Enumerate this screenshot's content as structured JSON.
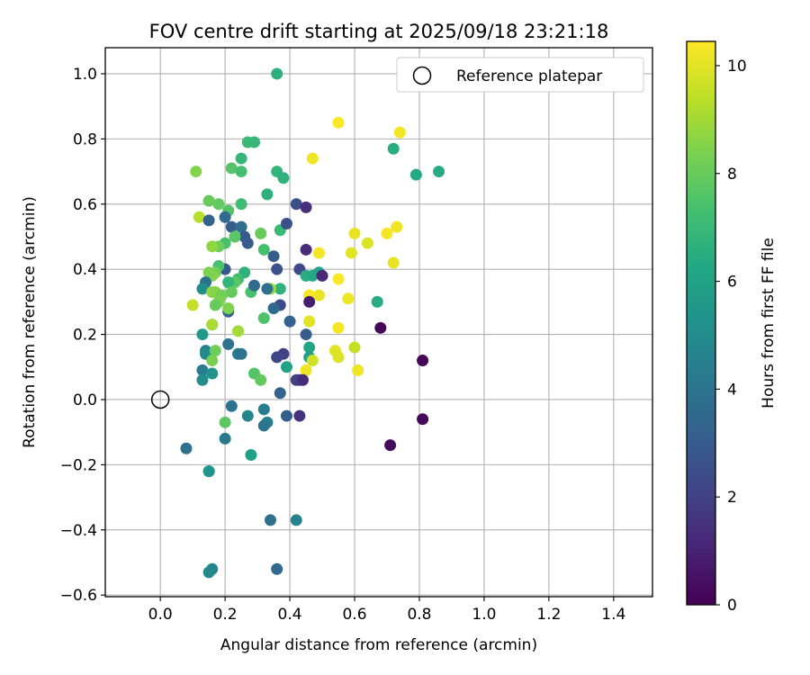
{
  "chart_data": {
    "type": "scatter",
    "title": "FOV centre drift starting at 2025/09/18 23:21:18",
    "xlabel": "Angular distance from reference (arcmin)",
    "ylabel": "Rotation from reference (arcmin)",
    "xlim": [
      -0.17,
      1.52
    ],
    "ylim": [
      -0.605,
      1.08
    ],
    "xticks": [
      "0.0",
      "0.2",
      "0.4",
      "0.6",
      "0.8",
      "1.0",
      "1.2",
      "1.4"
    ],
    "yticks": [
      "1.0",
      "0.8",
      "0.6",
      "0.4",
      "0.2",
      "0.0",
      "−0.2",
      "−0.4",
      "−0.6"
    ],
    "grid": true,
    "legend": {
      "location": "top-right",
      "entries": [
        "Reference platepar"
      ]
    },
    "reference_point": {
      "x": 0.0,
      "y": 0.0
    },
    "colorbar": {
      "label": "Hours from first FF file",
      "range": [
        0,
        10.45
      ],
      "ticks": [
        "0",
        "2",
        "4",
        "6",
        "8",
        "10"
      ],
      "colormap": "viridis"
    },
    "points": [
      {
        "x": 0.36,
        "y": 1.0,
        "h": 6.6
      },
      {
        "x": 0.86,
        "y": 0.7,
        "h": 6.4
      },
      {
        "x": 0.79,
        "y": 0.69,
        "h": 6.3
      },
      {
        "x": 0.72,
        "y": 0.77,
        "h": 6.5
      },
      {
        "x": 0.74,
        "y": 0.82,
        "h": 10.3
      },
      {
        "x": 0.55,
        "y": 0.85,
        "h": 10.4
      },
      {
        "x": 0.47,
        "y": 0.74,
        "h": 10.2
      },
      {
        "x": 0.27,
        "y": 0.79,
        "h": 7.0
      },
      {
        "x": 0.29,
        "y": 0.79,
        "h": 6.9
      },
      {
        "x": 0.36,
        "y": 0.7,
        "h": 6.8
      },
      {
        "x": 0.38,
        "y": 0.68,
        "h": 6.7
      },
      {
        "x": 0.22,
        "y": 0.71,
        "h": 7.6
      },
      {
        "x": 0.25,
        "y": 0.74,
        "h": 6.9
      },
      {
        "x": 0.25,
        "y": 0.7,
        "h": 7.3
      },
      {
        "x": 0.11,
        "y": 0.7,
        "h": 8.5
      },
      {
        "x": 0.15,
        "y": 0.61,
        "h": 8.0
      },
      {
        "x": 0.18,
        "y": 0.6,
        "h": 7.9
      },
      {
        "x": 0.12,
        "y": 0.56,
        "h": 9.3
      },
      {
        "x": 0.21,
        "y": 0.58,
        "h": 7.6
      },
      {
        "x": 0.25,
        "y": 0.6,
        "h": 7.2
      },
      {
        "x": 0.33,
        "y": 0.63,
        "h": 6.6
      },
      {
        "x": 0.15,
        "y": 0.55,
        "h": 3.3
      },
      {
        "x": 0.2,
        "y": 0.56,
        "h": 3.6
      },
      {
        "x": 0.22,
        "y": 0.53,
        "h": 3.0
      },
      {
        "x": 0.25,
        "y": 0.53,
        "h": 3.8
      },
      {
        "x": 0.26,
        "y": 0.5,
        "h": 2.9
      },
      {
        "x": 0.27,
        "y": 0.48,
        "h": 3.1
      },
      {
        "x": 0.23,
        "y": 0.5,
        "h": 7.7
      },
      {
        "x": 0.2,
        "y": 0.48,
        "h": 7.4
      },
      {
        "x": 0.18,
        "y": 0.47,
        "h": 8.1
      },
      {
        "x": 0.16,
        "y": 0.47,
        "h": 8.7
      },
      {
        "x": 0.31,
        "y": 0.51,
        "h": 8.0
      },
      {
        "x": 0.32,
        "y": 0.46,
        "h": 7.3
      },
      {
        "x": 0.35,
        "y": 0.44,
        "h": 3.0
      },
      {
        "x": 0.37,
        "y": 0.52,
        "h": 7.0
      },
      {
        "x": 0.39,
        "y": 0.54,
        "h": 2.6
      },
      {
        "x": 0.42,
        "y": 0.6,
        "h": 2.5
      },
      {
        "x": 0.45,
        "y": 0.59,
        "h": 1.4
      },
      {
        "x": 0.45,
        "y": 0.46,
        "h": 1.3
      },
      {
        "x": 0.43,
        "y": 0.4,
        "h": 2.3
      },
      {
        "x": 0.45,
        "y": 0.38,
        "h": 6.5
      },
      {
        "x": 0.47,
        "y": 0.38,
        "h": 6.3
      },
      {
        "x": 0.49,
        "y": 0.39,
        "h": 6.0
      },
      {
        "x": 0.5,
        "y": 0.38,
        "h": 1.2
      },
      {
        "x": 0.49,
        "y": 0.45,
        "h": 10.3
      },
      {
        "x": 0.6,
        "y": 0.51,
        "h": 10.1
      },
      {
        "x": 0.64,
        "y": 0.48,
        "h": 9.9
      },
      {
        "x": 0.59,
        "y": 0.45,
        "h": 10.0
      },
      {
        "x": 0.7,
        "y": 0.51,
        "h": 10.3
      },
      {
        "x": 0.73,
        "y": 0.53,
        "h": 10.2
      },
      {
        "x": 0.72,
        "y": 0.42,
        "h": 10.1
      },
      {
        "x": 0.67,
        "y": 0.3,
        "h": 6.4
      },
      {
        "x": 0.68,
        "y": 0.22,
        "h": 0.2
      },
      {
        "x": 0.81,
        "y": 0.12,
        "h": 0.1
      },
      {
        "x": 0.81,
        "y": -0.06,
        "h": 0.2
      },
      {
        "x": 0.71,
        "y": -0.14,
        "h": 0.3
      },
      {
        "x": 0.55,
        "y": 0.37,
        "h": 10.4
      },
      {
        "x": 0.58,
        "y": 0.31,
        "h": 10.2
      },
      {
        "x": 0.55,
        "y": 0.22,
        "h": 10.3
      },
      {
        "x": 0.54,
        "y": 0.15,
        "h": 10.0
      },
      {
        "x": 0.55,
        "y": 0.13,
        "h": 9.9
      },
      {
        "x": 0.6,
        "y": 0.16,
        "h": 9.5
      },
      {
        "x": 0.61,
        "y": 0.09,
        "h": 10.2
      },
      {
        "x": 0.49,
        "y": 0.32,
        "h": 10.1
      },
      {
        "x": 0.46,
        "y": 0.32,
        "h": 10.3
      },
      {
        "x": 0.46,
        "y": 0.3,
        "h": 0.9
      },
      {
        "x": 0.46,
        "y": 0.24,
        "h": 10.0
      },
      {
        "x": 0.45,
        "y": 0.2,
        "h": 3.0
      },
      {
        "x": 0.46,
        "y": 0.16,
        "h": 6.1
      },
      {
        "x": 0.46,
        "y": 0.13,
        "h": 5.9
      },
      {
        "x": 0.47,
        "y": 0.12,
        "h": 9.7
      },
      {
        "x": 0.45,
        "y": 0.09,
        "h": 10.2
      },
      {
        "x": 0.43,
        "y": 0.06,
        "h": 1.6
      },
      {
        "x": 0.42,
        "y": 0.06,
        "h": 2.0
      },
      {
        "x": 0.44,
        "y": 0.06,
        "h": 1.3
      },
      {
        "x": 0.43,
        "y": -0.05,
        "h": 1.5
      },
      {
        "x": 0.39,
        "y": 0.1,
        "h": 6.0
      },
      {
        "x": 0.38,
        "y": 0.14,
        "h": 2.0
      },
      {
        "x": 0.36,
        "y": 0.13,
        "h": 2.2
      },
      {
        "x": 0.37,
        "y": 0.02,
        "h": 3.4
      },
      {
        "x": 0.39,
        "y": -0.05,
        "h": 3.1
      },
      {
        "x": 0.4,
        "y": 0.24,
        "h": 3.2
      },
      {
        "x": 0.37,
        "y": 0.29,
        "h": 2.4
      },
      {
        "x": 0.35,
        "y": 0.28,
        "h": 3.6
      },
      {
        "x": 0.32,
        "y": 0.25,
        "h": 7.5
      },
      {
        "x": 0.36,
        "y": 0.4,
        "h": 2.6
      },
      {
        "x": 0.37,
        "y": 0.34,
        "h": 6.7
      },
      {
        "x": 0.34,
        "y": 0.34,
        "h": 8.9
      },
      {
        "x": 0.33,
        "y": 0.34,
        "h": 3.9
      },
      {
        "x": 0.28,
        "y": 0.33,
        "h": 7.4
      },
      {
        "x": 0.29,
        "y": 0.35,
        "h": 3.6
      },
      {
        "x": 0.26,
        "y": 0.39,
        "h": 6.7
      },
      {
        "x": 0.24,
        "y": 0.37,
        "h": 7.2
      },
      {
        "x": 0.23,
        "y": 0.36,
        "h": 7.7
      },
      {
        "x": 0.21,
        "y": 0.36,
        "h": 6.8
      },
      {
        "x": 0.22,
        "y": 0.33,
        "h": 8.0
      },
      {
        "x": 0.2,
        "y": 0.4,
        "h": 2.9
      },
      {
        "x": 0.18,
        "y": 0.41,
        "h": 7.4
      },
      {
        "x": 0.17,
        "y": 0.39,
        "h": 8.2
      },
      {
        "x": 0.16,
        "y": 0.38,
        "h": 8.5
      },
      {
        "x": 0.15,
        "y": 0.39,
        "h": 8.4
      },
      {
        "x": 0.14,
        "y": 0.36,
        "h": 4.0
      },
      {
        "x": 0.13,
        "y": 0.34,
        "h": 5.1
      },
      {
        "x": 0.16,
        "y": 0.33,
        "h": 8.7
      },
      {
        "x": 0.17,
        "y": 0.33,
        "h": 8.5
      },
      {
        "x": 0.19,
        "y": 0.32,
        "h": 8.2
      },
      {
        "x": 0.18,
        "y": 0.3,
        "h": 8.4
      },
      {
        "x": 0.17,
        "y": 0.29,
        "h": 8.0
      },
      {
        "x": 0.21,
        "y": 0.27,
        "h": 3.4
      },
      {
        "x": 0.21,
        "y": 0.28,
        "h": 8.4
      },
      {
        "x": 0.1,
        "y": 0.29,
        "h": 9.5
      },
      {
        "x": 0.16,
        "y": 0.23,
        "h": 6.1
      },
      {
        "x": 0.16,
        "y": 0.23,
        "h": 9.1
      },
      {
        "x": 0.24,
        "y": 0.21,
        "h": 9.0
      },
      {
        "x": 0.13,
        "y": 0.2,
        "h": 5.5
      },
      {
        "x": 0.21,
        "y": 0.17,
        "h": 3.9
      },
      {
        "x": 0.14,
        "y": 0.15,
        "h": 4.5
      },
      {
        "x": 0.14,
        "y": 0.14,
        "h": 4.9
      },
      {
        "x": 0.17,
        "y": 0.15,
        "h": 8.1
      },
      {
        "x": 0.16,
        "y": 0.12,
        "h": 8.3
      },
      {
        "x": 0.24,
        "y": 0.14,
        "h": 4.2
      },
      {
        "x": 0.25,
        "y": 0.14,
        "h": 4.0
      },
      {
        "x": 0.13,
        "y": 0.09,
        "h": 4.4
      },
      {
        "x": 0.13,
        "y": 0.06,
        "h": 5.0
      },
      {
        "x": 0.16,
        "y": 0.08,
        "h": 5.3
      },
      {
        "x": 0.29,
        "y": 0.08,
        "h": 7.6
      },
      {
        "x": 0.31,
        "y": 0.06,
        "h": 7.9
      },
      {
        "x": 0.22,
        "y": -0.02,
        "h": 4.0
      },
      {
        "x": 0.2,
        "y": -0.07,
        "h": 7.8
      },
      {
        "x": 0.27,
        "y": -0.05,
        "h": 4.7
      },
      {
        "x": 0.32,
        "y": -0.03,
        "h": 4.3
      },
      {
        "x": 0.33,
        "y": -0.07,
        "h": 4.5
      },
      {
        "x": 0.32,
        "y": -0.08,
        "h": 4.1
      },
      {
        "x": 0.2,
        "y": -0.12,
        "h": 4.2
      },
      {
        "x": 0.08,
        "y": -0.15,
        "h": 3.9
      },
      {
        "x": 0.28,
        "y": -0.17,
        "h": 5.9
      },
      {
        "x": 0.15,
        "y": -0.22,
        "h": 5.2
      },
      {
        "x": 0.15,
        "y": -0.22,
        "h": 5.4
      },
      {
        "x": 0.34,
        "y": -0.37,
        "h": 3.8
      },
      {
        "x": 0.42,
        "y": -0.37,
        "h": 4.6
      },
      {
        "x": 0.36,
        "y": -0.52,
        "h": 3.5
      },
      {
        "x": 0.16,
        "y": -0.52,
        "h": 4.7
      },
      {
        "x": 0.15,
        "y": -0.53,
        "h": 4.9
      }
    ]
  }
}
